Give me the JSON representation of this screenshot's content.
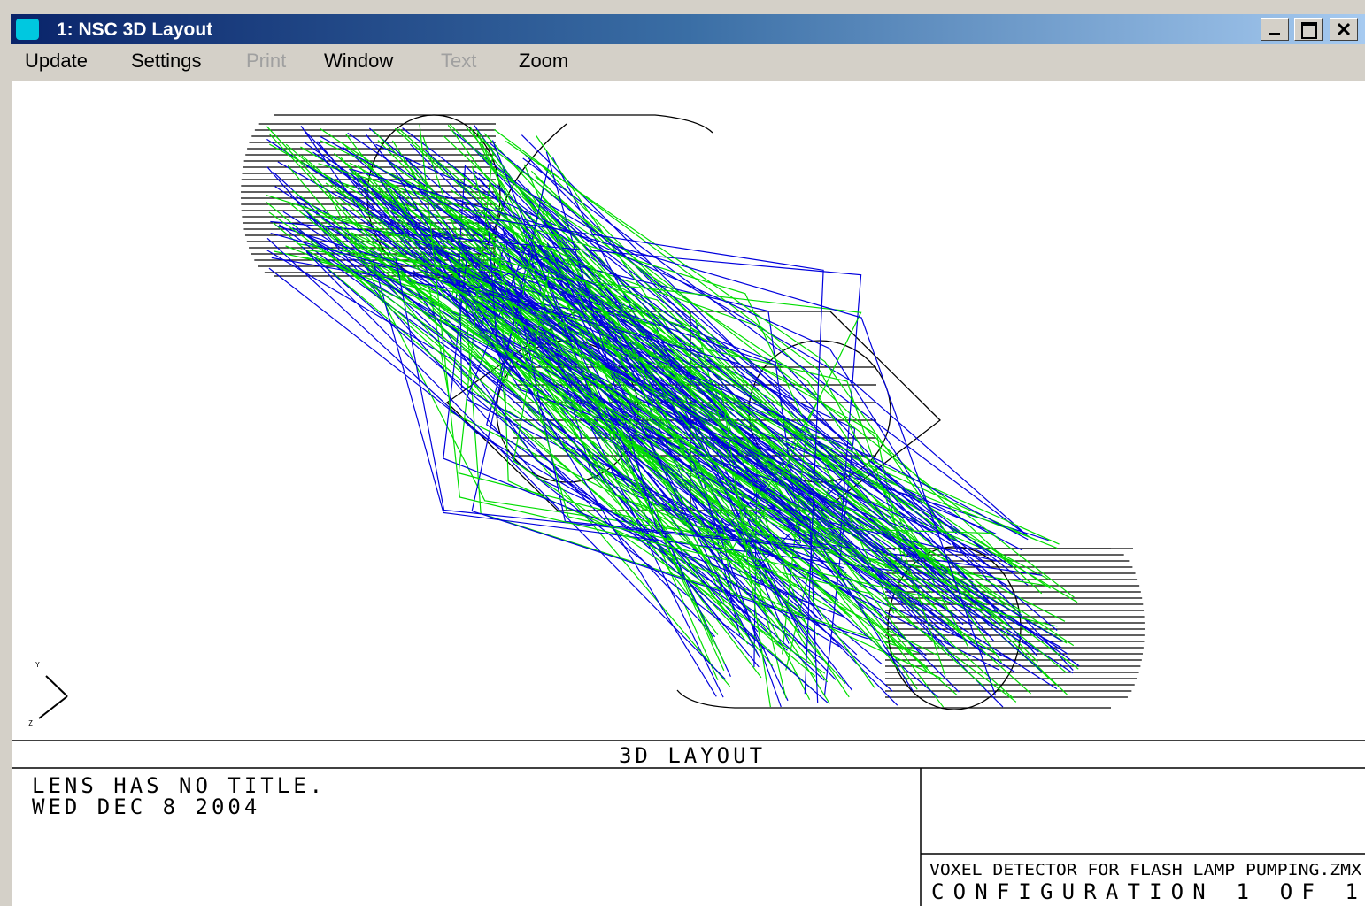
{
  "window": {
    "title": "1: NSC 3D Layout"
  },
  "menu": [
    {
      "label": "Update",
      "enabled": true
    },
    {
      "label": "Settings",
      "enabled": true
    },
    {
      "label": "Print",
      "enabled": false
    },
    {
      "label": "Window",
      "enabled": true
    },
    {
      "label": "Text",
      "enabled": false
    },
    {
      "label": "Zoom",
      "enabled": true
    }
  ],
  "plot": {
    "title": "3D LAYOUT",
    "axis_labels": [
      "Y",
      "Z"
    ],
    "lens_title": "LENS HAS NO TITLE.",
    "date": "WED DEC 8 2004",
    "file": "VOXEL DETECTOR FOR FLASH LAMP PUMPING.ZMX",
    "configuration": "CONFIGURATION 1 OF 1"
  }
}
